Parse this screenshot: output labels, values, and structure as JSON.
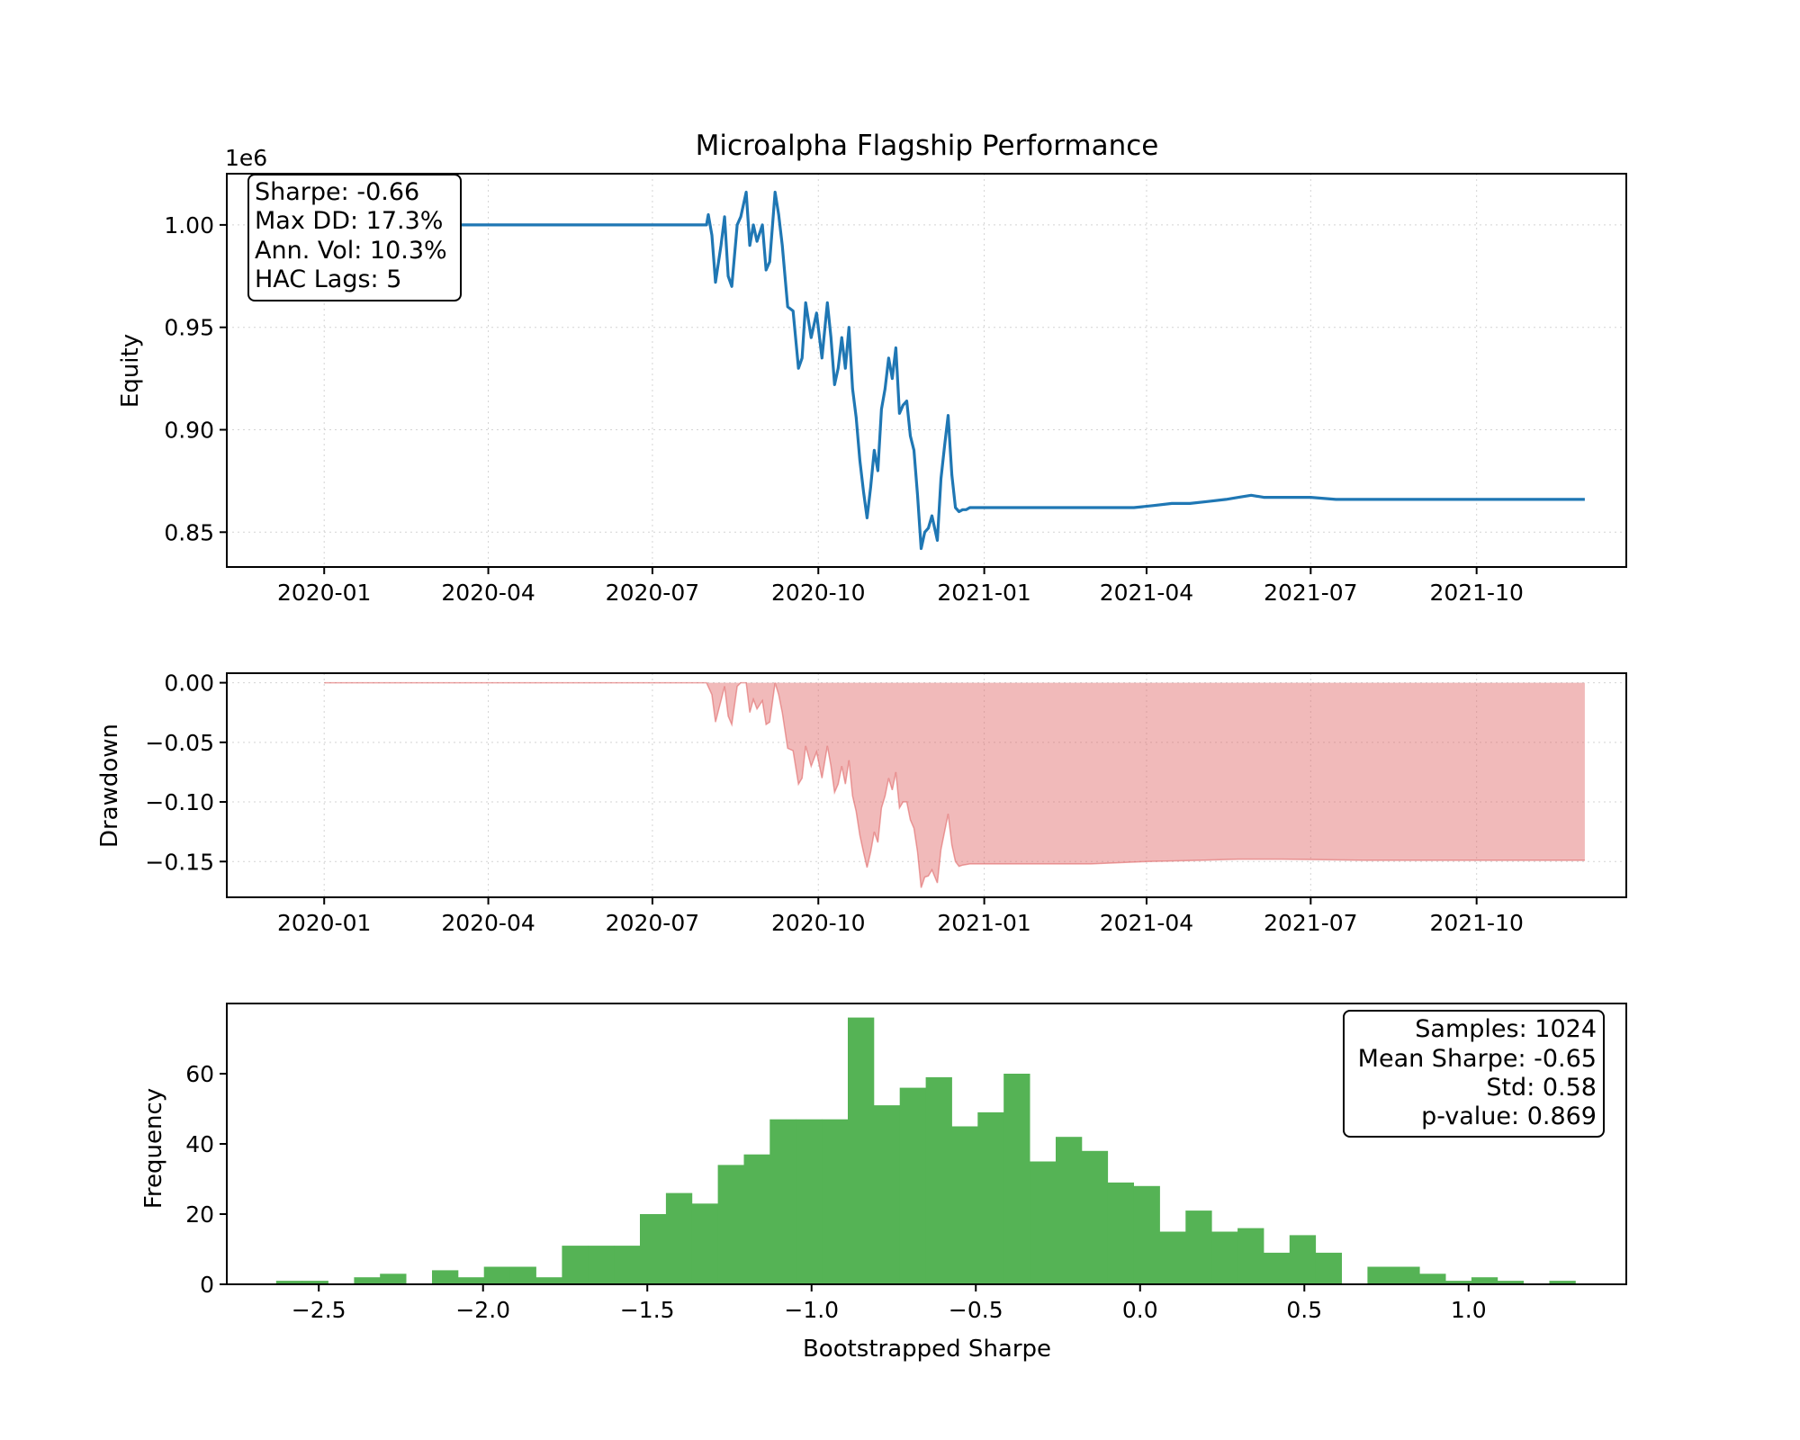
{
  "chart_data": [
    {
      "type": "line",
      "title": "Microalpha Flagship Performance",
      "ylabel": "Equity",
      "y_offset_text": "1e6",
      "xlim": [
        "2019-11-08",
        "2021-12-23"
      ],
      "ylim": [
        0.833,
        1.025
      ],
      "x_ticks": [
        "2020-01",
        "2020-04",
        "2020-07",
        "2020-10",
        "2021-01",
        "2021-04",
        "2021-07",
        "2021-10"
      ],
      "y_ticks": [
        "0.85",
        "0.90",
        "0.95",
        "1.00"
      ],
      "grid": true,
      "color": "#1f77b4",
      "stats_box": [
        "Sharpe: -0.66",
        "Max DD: 17.3%",
        "Ann. Vol: 10.3%",
        "HAC Lags: 5"
      ],
      "x": [
        "2020-01-01",
        "2020-07-31",
        "2020-08-01",
        "2020-08-03",
        "2020-08-05",
        "2020-08-08",
        "2020-08-10",
        "2020-08-12",
        "2020-08-14",
        "2020-08-17",
        "2020-08-19",
        "2020-08-22",
        "2020-08-24",
        "2020-08-26",
        "2020-08-28",
        "2020-08-31",
        "2020-09-02",
        "2020-09-04",
        "2020-09-07",
        "2020-09-09",
        "2020-09-11",
        "2020-09-14",
        "2020-09-17",
        "2020-09-20",
        "2020-09-22",
        "2020-09-24",
        "2020-09-27",
        "2020-09-30",
        "2020-10-03",
        "2020-10-06",
        "2020-10-08",
        "2020-10-10",
        "2020-10-12",
        "2020-10-14",
        "2020-10-16",
        "2020-10-18",
        "2020-10-20",
        "2020-10-22",
        "2020-10-24",
        "2020-10-26",
        "2020-10-28",
        "2020-10-30",
        "2020-11-01",
        "2020-11-03",
        "2020-11-05",
        "2020-11-07",
        "2020-11-09",
        "2020-11-11",
        "2020-11-13",
        "2020-11-15",
        "2020-11-17",
        "2020-11-19",
        "2020-11-21",
        "2020-11-23",
        "2020-11-25",
        "2020-11-27",
        "2020-11-29",
        "2020-12-01",
        "2020-12-03",
        "2020-12-06",
        "2020-12-08",
        "2020-12-10",
        "2020-12-12",
        "2020-12-14",
        "2020-12-16",
        "2020-12-18",
        "2020-12-20",
        "2020-12-22",
        "2020-12-24",
        "2020-12-26",
        "2020-12-28",
        "2020-12-30",
        "2021-01-01",
        "2021-01-03",
        "2021-01-07",
        "2021-01-15",
        "2021-01-25",
        "2021-02-05",
        "2021-02-15",
        "2021-02-25",
        "2021-03-05",
        "2021-03-15",
        "2021-03-25",
        "2021-04-05",
        "2021-04-15",
        "2021-04-25",
        "2021-05-05",
        "2021-05-15",
        "2021-05-22",
        "2021-05-29",
        "2021-06-05",
        "2021-06-15",
        "2021-07-01",
        "2021-07-15",
        "2021-08-15",
        "2021-09-15",
        "2021-10-15",
        "2021-11-15",
        "2021-11-30"
      ],
      "y": [
        1.0,
        1.0,
        1.005,
        0.995,
        0.972,
        0.99,
        1.004,
        0.975,
        0.97,
        1.0,
        1.004,
        1.016,
        0.99,
        1.0,
        0.992,
        1.0,
        0.978,
        0.982,
        1.016,
        1.005,
        0.99,
        0.96,
        0.958,
        0.93,
        0.935,
        0.962,
        0.945,
        0.957,
        0.935,
        0.962,
        0.945,
        0.922,
        0.93,
        0.945,
        0.93,
        0.95,
        0.92,
        0.906,
        0.885,
        0.87,
        0.857,
        0.872,
        0.89,
        0.88,
        0.91,
        0.92,
        0.935,
        0.925,
        0.94,
        0.908,
        0.912,
        0.914,
        0.897,
        0.89,
        0.868,
        0.842,
        0.85,
        0.852,
        0.858,
        0.846,
        0.876,
        0.892,
        0.907,
        0.878,
        0.862,
        0.86,
        0.861,
        0.861,
        0.862,
        0.862,
        0.862,
        0.862,
        0.862,
        0.862,
        0.862,
        0.862,
        0.862,
        0.862,
        0.862,
        0.862,
        0.862,
        0.862,
        0.862,
        0.863,
        0.864,
        0.864,
        0.865,
        0.866,
        0.867,
        0.868,
        0.867,
        0.867,
        0.867,
        0.866,
        0.866,
        0.866,
        0.866,
        0.866,
        0.866
      ]
    },
    {
      "type": "area",
      "ylabel": "Drawdown",
      "xlim": [
        "2019-11-08",
        "2021-12-23"
      ],
      "ylim": [
        -0.18,
        0.008
      ],
      "x_ticks": [
        "2020-01",
        "2020-04",
        "2020-07",
        "2020-10",
        "2021-01",
        "2021-04",
        "2021-07",
        "2021-10"
      ],
      "y_ticks": [
        "0.00",
        "−0.05",
        "−0.10",
        "−0.15"
      ],
      "grid": true,
      "color": "#e06666",
      "x": [
        "2020-01-01",
        "2020-07-31",
        "2020-08-03",
        "2020-08-05",
        "2020-08-08",
        "2020-08-10",
        "2020-08-12",
        "2020-08-14",
        "2020-08-17",
        "2020-08-19",
        "2020-08-22",
        "2020-08-24",
        "2020-08-26",
        "2020-08-28",
        "2020-08-31",
        "2020-09-02",
        "2020-09-04",
        "2020-09-07",
        "2020-09-09",
        "2020-09-11",
        "2020-09-14",
        "2020-09-17",
        "2020-09-20",
        "2020-09-22",
        "2020-09-24",
        "2020-09-27",
        "2020-09-30",
        "2020-10-03",
        "2020-10-06",
        "2020-10-08",
        "2020-10-10",
        "2020-10-12",
        "2020-10-14",
        "2020-10-16",
        "2020-10-18",
        "2020-10-20",
        "2020-10-22",
        "2020-10-24",
        "2020-10-26",
        "2020-10-28",
        "2020-10-30",
        "2020-11-01",
        "2020-11-03",
        "2020-11-05",
        "2020-11-07",
        "2020-11-09",
        "2020-11-11",
        "2020-11-13",
        "2020-11-15",
        "2020-11-17",
        "2020-11-19",
        "2020-11-21",
        "2020-11-23",
        "2020-11-25",
        "2020-11-27",
        "2020-11-29",
        "2020-12-01",
        "2020-12-03",
        "2020-12-06",
        "2020-12-08",
        "2020-12-10",
        "2020-12-12",
        "2020-12-14",
        "2020-12-16",
        "2020-12-18",
        "2020-12-20",
        "2020-12-24",
        "2021-01-01",
        "2021-01-15",
        "2021-02-01",
        "2021-03-01",
        "2021-04-01",
        "2021-05-01",
        "2021-05-22",
        "2021-06-15",
        "2021-08-01",
        "2021-10-01",
        "2021-11-30"
      ],
      "y": [
        0.0,
        0.0,
        -0.01,
        -0.033,
        -0.015,
        -0.003,
        -0.028,
        -0.035,
        -0.003,
        0.0,
        0.0,
        -0.025,
        -0.014,
        -0.022,
        -0.015,
        -0.035,
        -0.033,
        0.0,
        -0.01,
        -0.025,
        -0.055,
        -0.057,
        -0.085,
        -0.08,
        -0.053,
        -0.07,
        -0.058,
        -0.08,
        -0.053,
        -0.07,
        -0.092,
        -0.085,
        -0.07,
        -0.085,
        -0.065,
        -0.095,
        -0.108,
        -0.128,
        -0.142,
        -0.155,
        -0.142,
        -0.125,
        -0.134,
        -0.105,
        -0.095,
        -0.08,
        -0.09,
        -0.075,
        -0.105,
        -0.1,
        -0.1,
        -0.115,
        -0.122,
        -0.142,
        -0.172,
        -0.163,
        -0.162,
        -0.157,
        -0.168,
        -0.14,
        -0.125,
        -0.11,
        -0.136,
        -0.15,
        -0.154,
        -0.153,
        -0.152,
        -0.152,
        -0.152,
        -0.152,
        -0.152,
        -0.15,
        -0.149,
        -0.148,
        -0.148,
        -0.149,
        -0.149,
        -0.149
      ]
    },
    {
      "type": "bar",
      "xlabel": "Bootstrapped Sharpe",
      "ylabel": "Frequency",
      "xlim": [
        -2.78,
        1.48
      ],
      "ylim": [
        0,
        80
      ],
      "x_ticks": [
        "−2.5",
        "−2.0",
        "−1.5",
        "−1.0",
        "−0.5",
        "0.0",
        "0.5",
        "1.0"
      ],
      "y_ticks": [
        "0",
        "20",
        "40",
        "60"
      ],
      "color": "#55b355",
      "stats_box": [
        "Samples: 1024",
        "Mean Sharpe: -0.65",
        "Std: 0.58",
        "p-value: 0.869"
      ],
      "bin_start": -2.63,
      "bin_width": 0.0791,
      "values": [
        1,
        1,
        0,
        2,
        3,
        0,
        4,
        2,
        5,
        5,
        2,
        11,
        11,
        11,
        20,
        26,
        23,
        34,
        37,
        47,
        47,
        47,
        76,
        51,
        56,
        59,
        45,
        49,
        60,
        35,
        42,
        38,
        29,
        28,
        15,
        21,
        15,
        16,
        9,
        14,
        9,
        0,
        5,
        5,
        3,
        1,
        2,
        1,
        0,
        1
      ]
    }
  ]
}
